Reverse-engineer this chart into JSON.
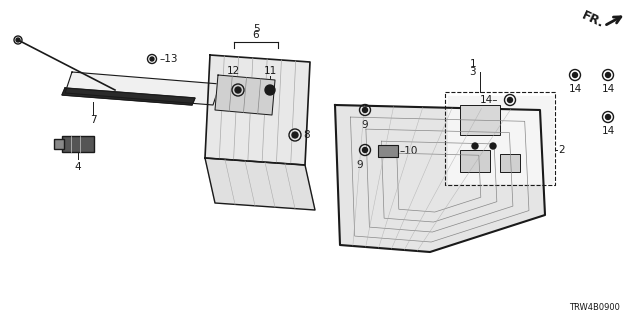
{
  "bg_color": "#ffffff",
  "line_color": "#1a1a1a",
  "diagram_label": "TRW4B0900",
  "annotation_fontsize": 7.5
}
